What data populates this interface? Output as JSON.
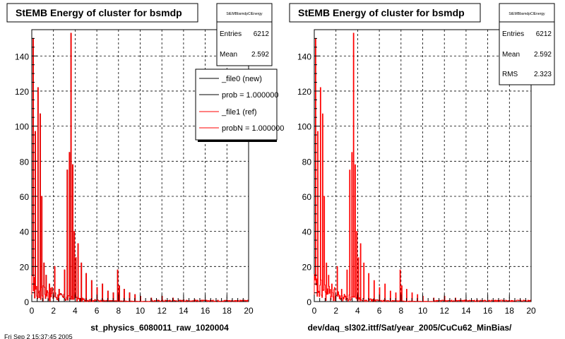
{
  "page": {
    "bottom_left_text": "Fri Sep 2 15:37:45 2005"
  },
  "charts": [
    {
      "title": "StEMB Energy of cluster for bsmdp",
      "stats": {
        "name": "StEMBbsmdpClEnergy",
        "rows": [
          {
            "label": "Entries",
            "value": "6212"
          },
          {
            "label": "Mean",
            "value": "2.592"
          }
        ]
      },
      "legend": [
        {
          "label": "_file0 (new)",
          "color": "#000000"
        },
        {
          "label": "prob = 1.000000",
          "color": "#000000"
        },
        {
          "label": "_file1 (ref)",
          "color": "#ff0000"
        },
        {
          "label": "probN = 1.000000",
          "color": "#ff0000"
        }
      ],
      "xlabel": "st_physics_6080011_raw_1020004"
    },
    {
      "title": "StEMB Energy of cluster for bsmdp",
      "stats": {
        "name": "StEMBbsmdpClEnergy",
        "rows": [
          {
            "label": "Entries",
            "value": "6212"
          },
          {
            "label": "Mean",
            "value": "2.592"
          },
          {
            "label": "RMS",
            "value": "2.323"
          }
        ]
      },
      "legend": [],
      "xlabel": "dev/daq_sl302.ittf/Sat/year_2005/CuCu62_MinBias/"
    }
  ],
  "chart_data": [
    {
      "type": "bar",
      "title": "StEMB Energy of cluster for bsmdp",
      "xlabel": "st_physics_6080011_raw_1020004",
      "ylabel": "",
      "xlim": [
        0,
        20
      ],
      "ylim": [
        0,
        155
      ],
      "x_ticks": [
        "0",
        "2",
        "4",
        "6",
        "8",
        "10",
        "12",
        "14",
        "16",
        "18",
        "20"
      ],
      "y_ticks": [
        "0",
        "20",
        "40",
        "60",
        "80",
        "100",
        "120",
        "140"
      ],
      "grid": true,
      "legend_position": "top-right",
      "colors": {
        "new": "#000000",
        "ref": "#ff0000"
      },
      "bin_width": 0.05,
      "series": [
        {
          "name": "_file0 (new)",
          "peaks": [
            [
              0.1,
              150
            ],
            [
              0.35,
              97
            ],
            [
              0.55,
              122
            ],
            [
              0.75,
              107
            ],
            [
              0.9,
              60
            ],
            [
              1.1,
              22
            ],
            [
              1.3,
              15
            ],
            [
              1.6,
              10
            ],
            [
              1.9,
              8
            ],
            [
              2.1,
              20
            ],
            [
              2.5,
              7
            ],
            [
              3.0,
              18
            ],
            [
              3.3,
              75
            ],
            [
              3.45,
              85
            ],
            [
              3.6,
              153
            ],
            [
              3.75,
              78
            ],
            [
              3.9,
              40
            ],
            [
              4.1,
              25
            ],
            [
              4.3,
              33
            ],
            [
              4.6,
              22
            ],
            [
              5.0,
              16
            ],
            [
              5.5,
              12
            ],
            [
              6.0,
              8
            ],
            [
              6.5,
              10
            ],
            [
              7.0,
              6
            ],
            [
              7.5,
              5
            ],
            [
              7.9,
              18
            ],
            [
              8.1,
              9
            ],
            [
              8.5,
              7
            ],
            [
              9.0,
              5
            ],
            [
              9.5,
              4
            ],
            [
              10.0,
              3
            ],
            [
              11.0,
              2
            ],
            [
              12.0,
              3
            ],
            [
              13.0,
              2
            ],
            [
              14.0,
              1
            ],
            [
              15.0,
              1
            ]
          ]
        },
        {
          "name": "_file1 (ref)",
          "peaks": [
            [
              0.1,
              150
            ],
            [
              0.35,
              97
            ],
            [
              0.55,
              122
            ],
            [
              0.75,
              107
            ],
            [
              0.9,
              60
            ],
            [
              1.1,
              22
            ],
            [
              1.3,
              15
            ],
            [
              1.6,
              10
            ],
            [
              1.9,
              8
            ],
            [
              2.1,
              20
            ],
            [
              2.5,
              7
            ],
            [
              3.0,
              18
            ],
            [
              3.3,
              75
            ],
            [
              3.45,
              85
            ],
            [
              3.6,
              153
            ],
            [
              3.75,
              78
            ],
            [
              3.9,
              40
            ],
            [
              4.1,
              25
            ],
            [
              4.3,
              33
            ],
            [
              4.6,
              22
            ],
            [
              5.0,
              16
            ],
            [
              5.5,
              12
            ],
            [
              6.0,
              8
            ],
            [
              6.5,
              10
            ],
            [
              7.0,
              6
            ],
            [
              7.5,
              5
            ],
            [
              7.9,
              18
            ],
            [
              8.1,
              9
            ],
            [
              8.5,
              7
            ],
            [
              9.0,
              5
            ],
            [
              9.5,
              4
            ],
            [
              10.0,
              3
            ],
            [
              11.0,
              2
            ],
            [
              12.0,
              3
            ],
            [
              13.0,
              2
            ],
            [
              14.0,
              1
            ],
            [
              15.0,
              1
            ]
          ]
        }
      ]
    },
    {
      "type": "bar",
      "title": "StEMB Energy of cluster for bsmdp",
      "xlabel": "dev/daq_sl302.ittf/Sat/year_2005/CuCu62_MinBias/",
      "ylabel": "",
      "xlim": [
        0,
        20
      ],
      "ylim": [
        0,
        155
      ],
      "x_ticks": [
        "0",
        "2",
        "4",
        "6",
        "8",
        "10",
        "12",
        "14",
        "16",
        "18",
        "20"
      ],
      "y_ticks": [
        "0",
        "20",
        "40",
        "60",
        "80",
        "100",
        "120",
        "140"
      ],
      "grid": true,
      "colors": {
        "ref": "#ff0000"
      },
      "bin_width": 0.05,
      "series": [
        {
          "peaks": [
            [
              0.1,
              150
            ],
            [
              0.35,
              97
            ],
            [
              0.55,
              122
            ],
            [
              0.75,
              107
            ],
            [
              0.9,
              60
            ],
            [
              1.1,
              22
            ],
            [
              1.3,
              15
            ],
            [
              1.6,
              10
            ],
            [
              1.9,
              8
            ],
            [
              2.1,
              20
            ],
            [
              2.5,
              7
            ],
            [
              3.0,
              18
            ],
            [
              3.3,
              75
            ],
            [
              3.45,
              85
            ],
            [
              3.6,
              153
            ],
            [
              3.75,
              78
            ],
            [
              3.9,
              40
            ],
            [
              4.1,
              25
            ],
            [
              4.3,
              33
            ],
            [
              4.6,
              22
            ],
            [
              5.0,
              16
            ],
            [
              5.5,
              12
            ],
            [
              6.0,
              8
            ],
            [
              6.5,
              10
            ],
            [
              7.0,
              6
            ],
            [
              7.5,
              5
            ],
            [
              7.9,
              18
            ],
            [
              8.1,
              9
            ],
            [
              8.5,
              7
            ],
            [
              9.0,
              5
            ],
            [
              9.5,
              4
            ],
            [
              10.0,
              3
            ],
            [
              11.0,
              2
            ],
            [
              12.0,
              3
            ],
            [
              13.0,
              2
            ],
            [
              14.0,
              1
            ],
            [
              15.0,
              1
            ]
          ]
        }
      ]
    }
  ]
}
